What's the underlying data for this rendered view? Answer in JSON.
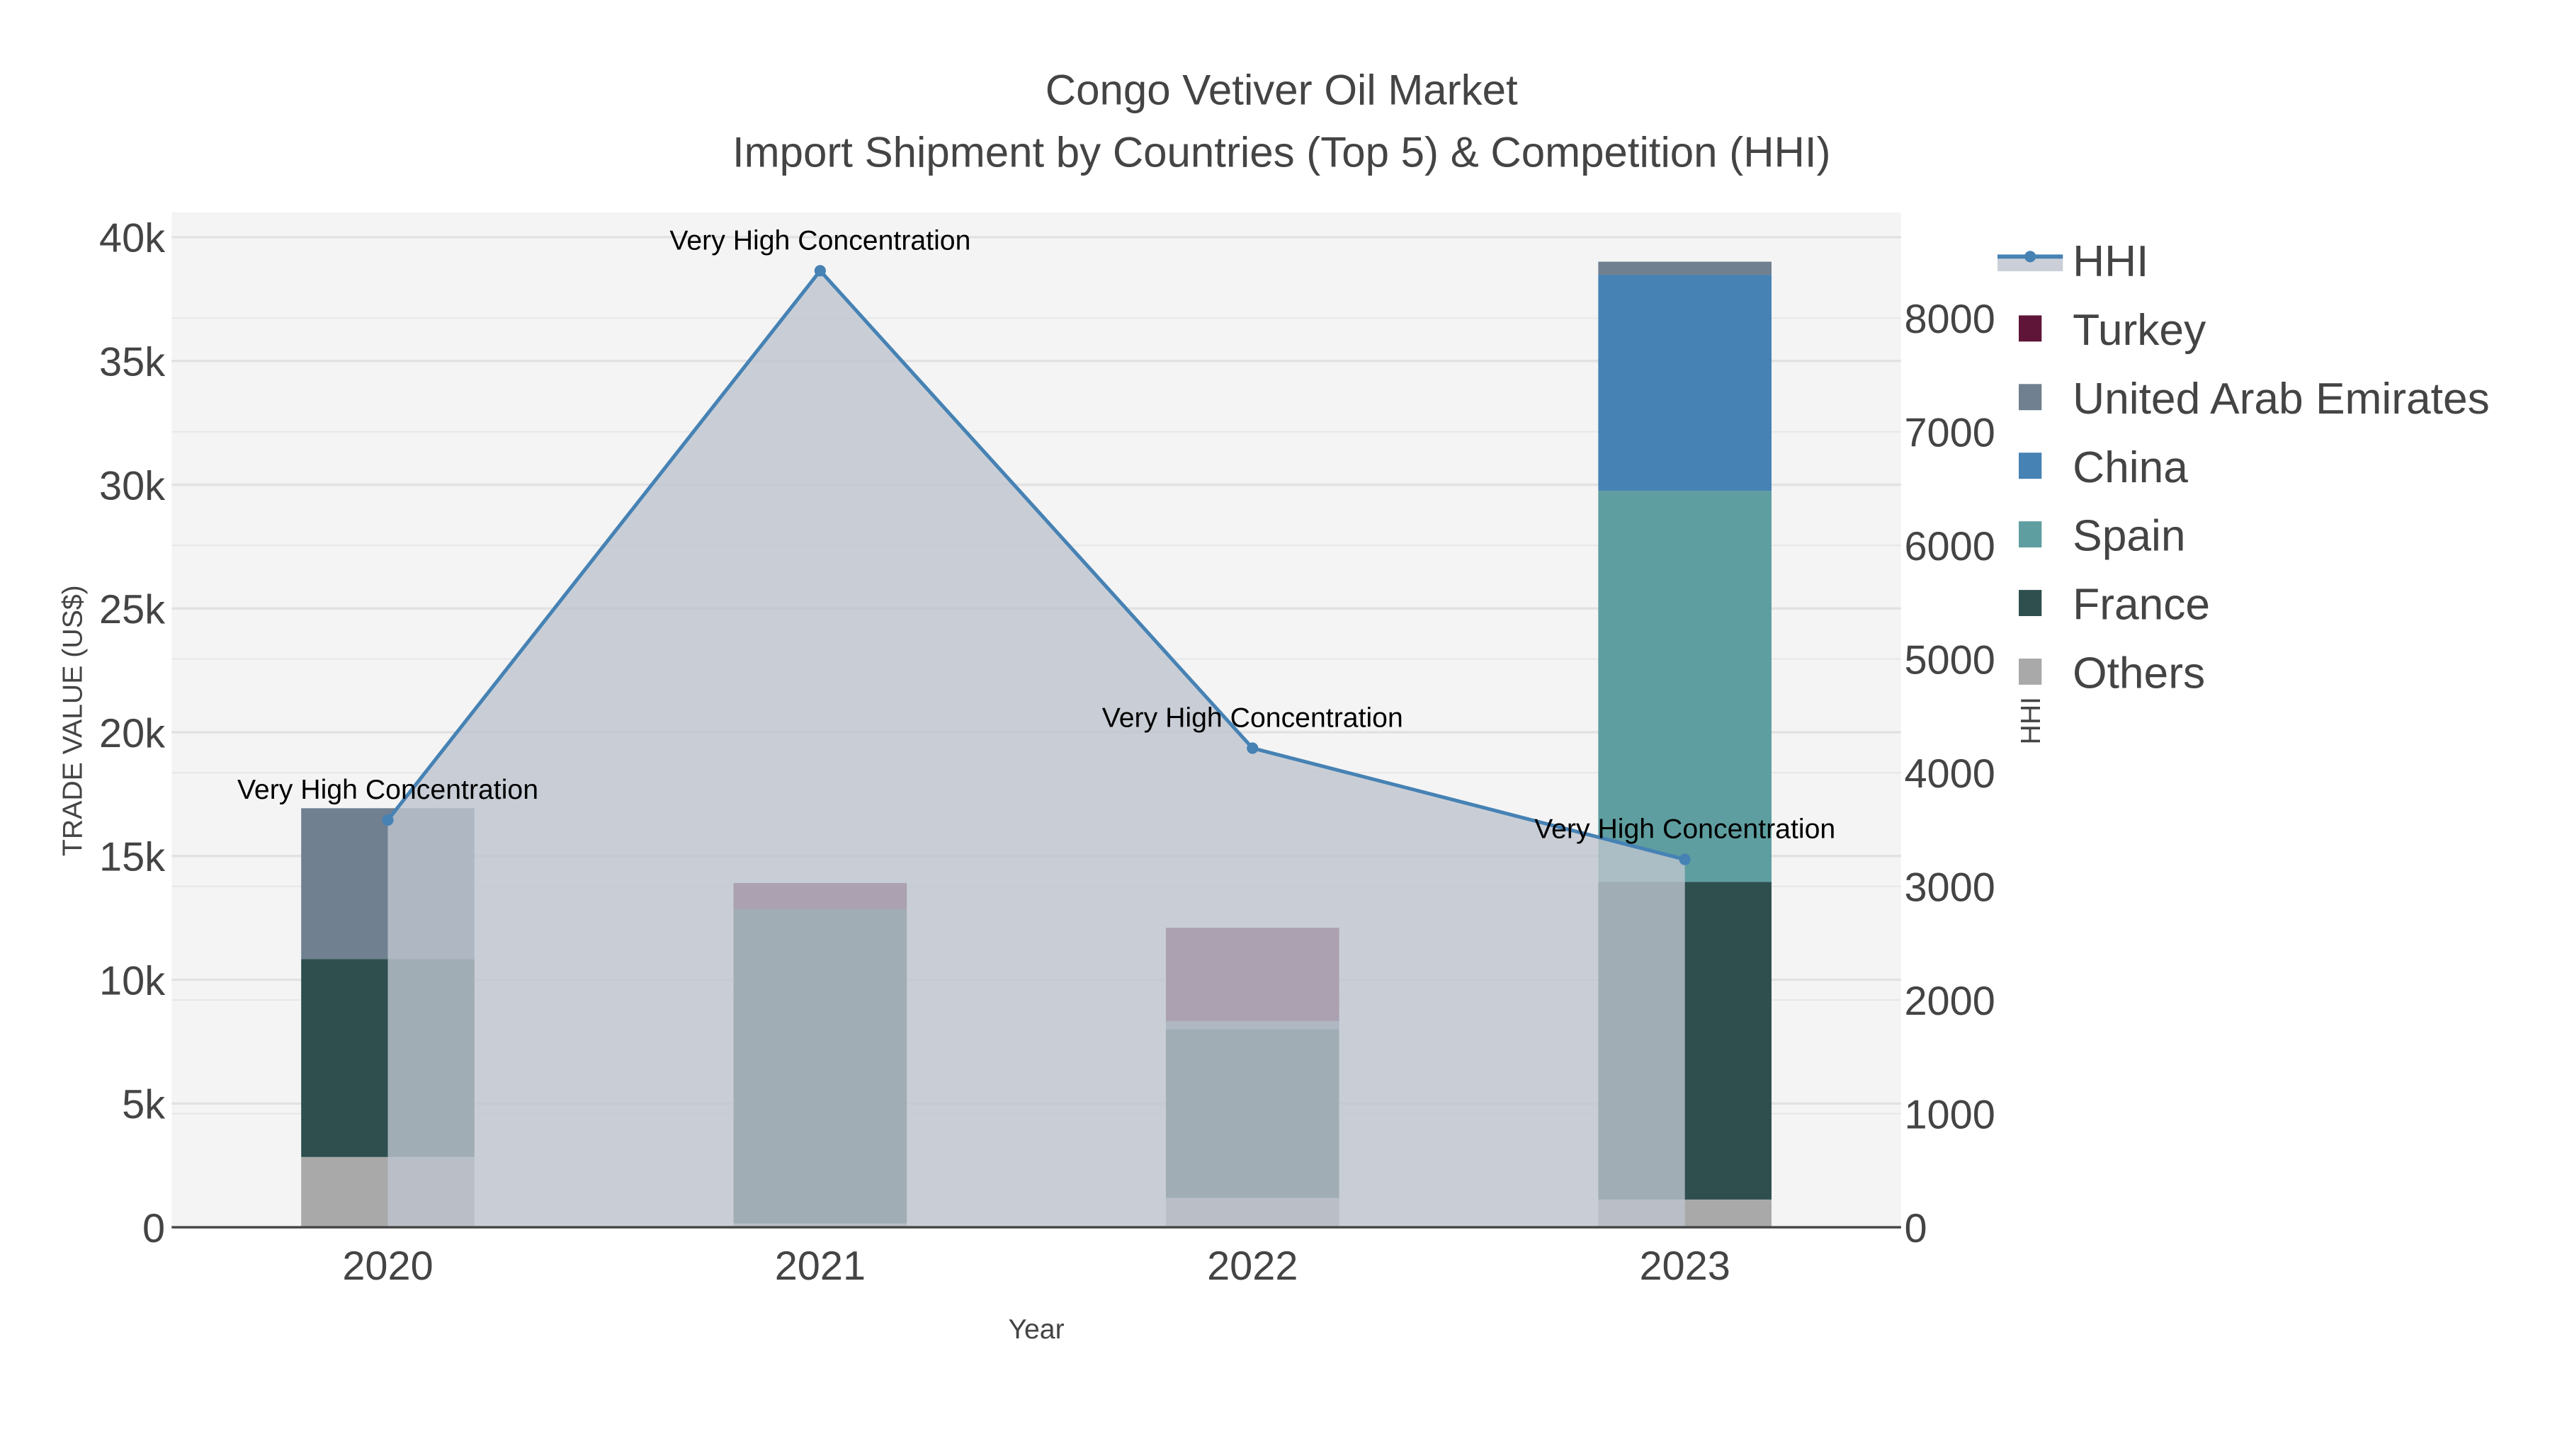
{
  "chart_data": {
    "type": "bar",
    "title": "Congo Vetiver Oil Market",
    "subtitle": "Import Shipment by Countries (Top 5) & Competition (HHI)",
    "xlabel": "Year",
    "ylabel": "TRADE VALUE (US$)",
    "y2label": "HHI",
    "categories": [
      "2020",
      "2021",
      "2022",
      "2023"
    ],
    "ylim": [
      0,
      41000
    ],
    "y2lim": [
      0,
      8930
    ],
    "yticks": [
      0,
      5000,
      10000,
      15000,
      20000,
      25000,
      30000,
      35000,
      40000
    ],
    "ytick_labels": [
      "0",
      "5k",
      "10k",
      "15k",
      "20k",
      "25k",
      "30k",
      "35k",
      "40k"
    ],
    "y2ticks": [
      0,
      1000,
      2000,
      3000,
      4000,
      5000,
      6000,
      7000,
      8000
    ],
    "y2tick_labels": [
      "0",
      "1000",
      "2000",
      "3000",
      "4000",
      "5000",
      "6000",
      "7000",
      "8000"
    ],
    "stacked": true,
    "series": [
      {
        "name": "Others",
        "color": "#a9a9a9",
        "values": [
          2840,
          150,
          1190,
          1120
        ]
      },
      {
        "name": "France",
        "color": "#2f4f4f",
        "values": [
          8000,
          12700,
          6810,
          12830
        ]
      },
      {
        "name": "Spain",
        "color": "#5f9ea0",
        "values": [
          0,
          0,
          0,
          15800
        ]
      },
      {
        "name": "China",
        "color": "#4682b4",
        "values": [
          0,
          0,
          0,
          8730
        ]
      },
      {
        "name": "United Arab Emirates",
        "color": "#708090",
        "values": [
          6090,
          0,
          330,
          530
        ]
      },
      {
        "name": "Turkey",
        "color": "#5f1537",
        "values": [
          0,
          1060,
          3770,
          0
        ]
      }
    ],
    "line": {
      "name": "HHI",
      "axis": "right",
      "color": "#4682b4",
      "fill": "tozeroy",
      "values": [
        3583,
        8417,
        4216,
        3237
      ],
      "annotations": [
        "Very High Concentration",
        "Very High Concentration",
        "Very High Concentration",
        "Very High Concentration"
      ]
    },
    "legend": {
      "position": "right",
      "order": [
        "HHI",
        "Turkey",
        "United Arab Emirates",
        "China",
        "Spain",
        "France",
        "Others"
      ]
    },
    "grid": true
  }
}
